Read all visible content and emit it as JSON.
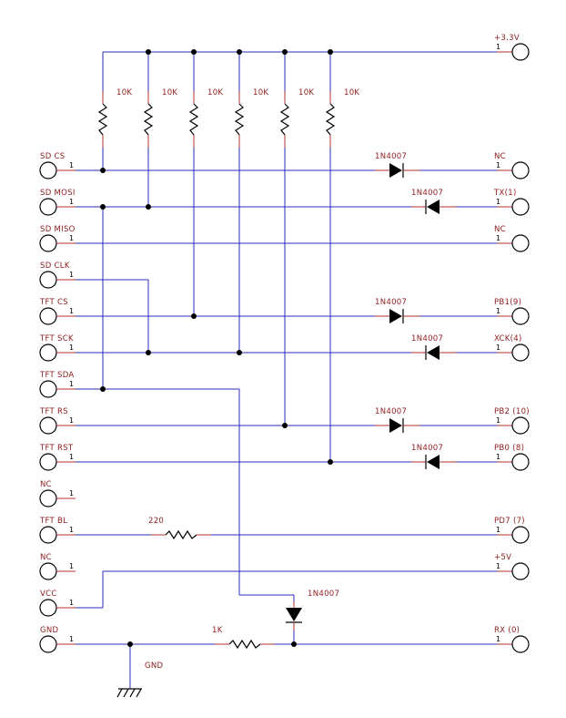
{
  "left_connectors": [
    "SD CS",
    "SD MOSI",
    "SD MISO",
    "SD CLK",
    "TFT CS",
    "TFT SCK",
    "TFT SDA",
    "TFT RS",
    "TFT RST",
    "NC",
    "TFT BL",
    "NC",
    "VCC",
    "GND"
  ],
  "right_connectors": [
    "+3.3V",
    "NC",
    "TX(1)",
    "NC",
    "PB1(9)",
    "XCK(4)",
    "PB2 (10)",
    "PB0 (8)",
    "PD7 (7)",
    "+5V",
    "RX (0)"
  ],
  "pin_number": "1",
  "pullup_resistors": [
    "10K",
    "10K",
    "10K",
    "10K",
    "10K",
    "10K"
  ],
  "diodes": [
    "1N4007",
    "1N4007",
    "1N4007",
    "1N4007",
    "1N4007",
    "1N4007",
    "1N4007"
  ],
  "resistor_bl": "220",
  "resistor_rx": "1K",
  "ground_label": "GND",
  "colors": {
    "wire": "#2b2bb8",
    "label": "#8b1a1a",
    "lead": "#b03030",
    "component": "#000000"
  }
}
